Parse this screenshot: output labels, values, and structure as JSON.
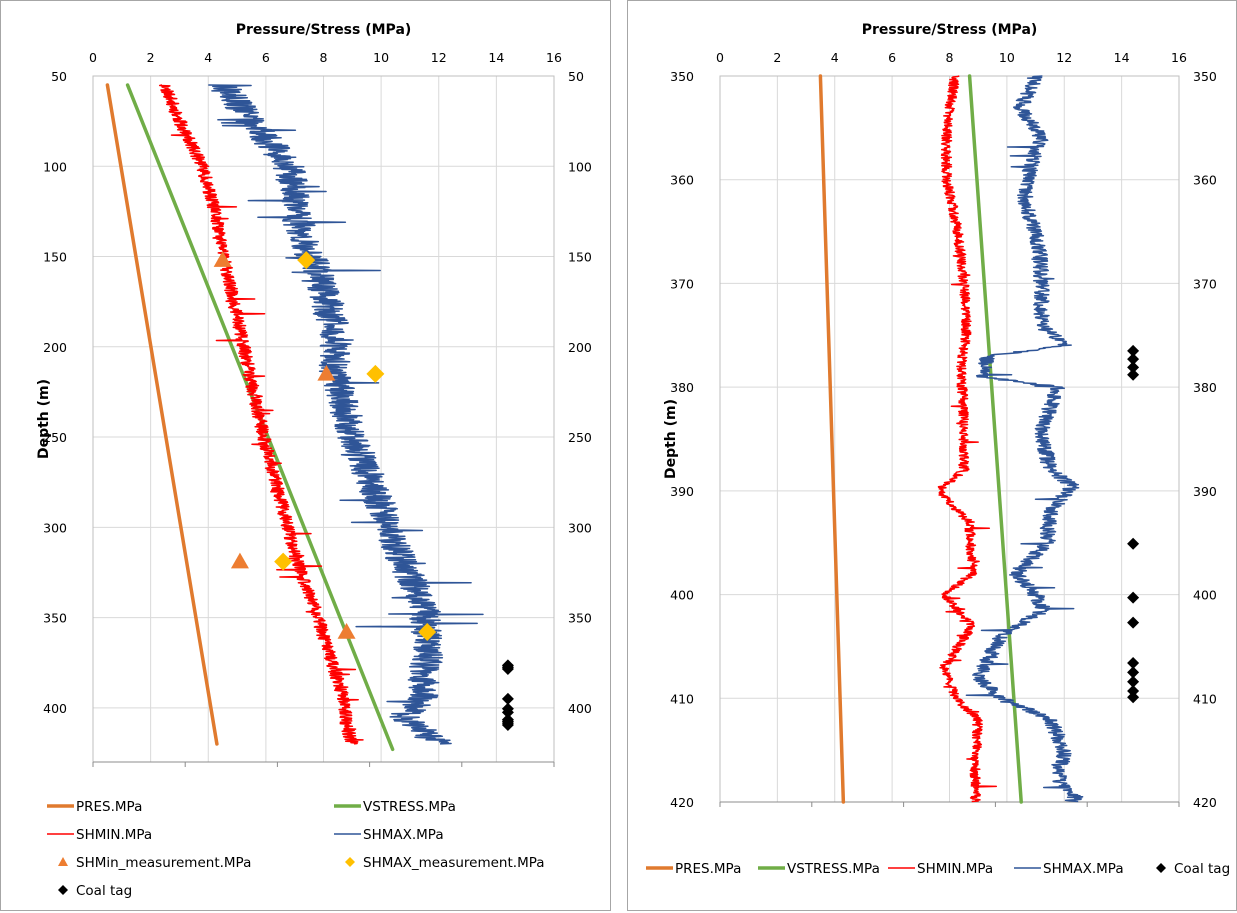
{
  "chart_data": [
    {
      "type": "line",
      "title": "",
      "xlabel": "Pressure/Stress (MPa)",
      "ylabel": "Depth (m)",
      "x_axis_position": "top",
      "y_inverted": true,
      "xlim": [
        0,
        16
      ],
      "x_ticks": [
        0,
        2,
        4,
        6,
        8,
        10,
        12,
        14,
        16
      ],
      "ylim": [
        50,
        430
      ],
      "y_ticks": [
        50,
        100,
        150,
        200,
        250,
        300,
        350,
        400
      ],
      "secondary_y_ticks": [
        50,
        100,
        150,
        200,
        250,
        300,
        350,
        400
      ],
      "grid": true,
      "legend_position": "bottom",
      "series": [
        {
          "name": "PRES.MPa",
          "kind": "line",
          "color": "#E07A2E",
          "points": [
            [
              0.5,
              55
            ],
            [
              4.3,
              420
            ]
          ]
        },
        {
          "name": "VSTRESS.MPa",
          "kind": "line",
          "color": "#70AD47",
          "points": [
            [
              1.2,
              55
            ],
            [
              10.4,
              423
            ]
          ]
        },
        {
          "name": "SHMIN.MPa",
          "kind": "noisy-line",
          "color": "#FF0000",
          "trend": [
            [
              2.5,
              55
            ],
            [
              3.0,
              75
            ],
            [
              3.8,
              100
            ],
            [
              4.3,
              130
            ],
            [
              4.6,
              155
            ],
            [
              5.1,
              190
            ],
            [
              5.5,
              220
            ],
            [
              6.0,
              255
            ],
            [
              6.6,
              290
            ],
            [
              7.1,
              320
            ],
            [
              7.8,
              350
            ],
            [
              8.3,
              375
            ],
            [
              8.7,
              395
            ],
            [
              8.8,
              410
            ],
            [
              9.0,
              420
            ]
          ],
          "spread": 0.45
        },
        {
          "name": "SHMAX.MPa",
          "kind": "noisy-line",
          "color": "#2F5597",
          "trend": [
            [
              4.5,
              55
            ],
            [
              5.5,
              75
            ],
            [
              6.8,
              100
            ],
            [
              7.1,
              130
            ],
            [
              7.8,
              160
            ],
            [
              8.4,
              190
            ],
            [
              8.4,
              215
            ],
            [
              9.0,
              250
            ],
            [
              9.8,
              280
            ],
            [
              10.5,
              310
            ],
            [
              11.5,
              345
            ],
            [
              11.6,
              370
            ],
            [
              11.4,
              395
            ],
            [
              10.8,
              405
            ],
            [
              12.0,
              420
            ]
          ],
          "spread": 1.1
        },
        {
          "name": "SHMin_measurement.MPa",
          "kind": "scatter",
          "marker": "triangle",
          "color": "#ED7D31",
          "points": [
            [
              4.5,
              152
            ],
            [
              8.1,
              215
            ],
            [
              5.1,
              319
            ],
            [
              8.8,
              358
            ]
          ]
        },
        {
          "name": "SHMAX_measurement.MPa",
          "kind": "scatter",
          "marker": "diamond",
          "color": "#FFC000",
          "points": [
            [
              7.4,
              152
            ],
            [
              9.8,
              215
            ],
            [
              6.6,
              319
            ],
            [
              11.6,
              358
            ]
          ]
        },
        {
          "name": "Coal tag",
          "kind": "scatter",
          "marker": "diamond",
          "color": "#000000",
          "points": [
            [
              14.4,
              376.5
            ],
            [
              14.4,
              377.5
            ],
            [
              14.4,
              378.5
            ],
            [
              14.4,
              395
            ],
            [
              14.4,
              400.5
            ],
            [
              14.4,
              402.5
            ],
            [
              14.4,
              406.5
            ],
            [
              14.4,
              407.5
            ],
            [
              14.4,
              408.5
            ],
            [
              14.4,
              409.5
            ]
          ]
        }
      ],
      "legend": [
        "PRES.MPa",
        "VSTRESS.MPa",
        "SHMIN.MPa",
        "SHMAX.MPa",
        "SHMin_measurement.MPa",
        "SHMAX_measurement.MPa",
        "Coal tag"
      ]
    },
    {
      "type": "line",
      "title": "",
      "xlabel": "Pressure/Stress (MPa)",
      "ylabel": "Depth (m)",
      "x_axis_position": "top",
      "y_inverted": true,
      "xlim": [
        0,
        16
      ],
      "x_ticks": [
        0,
        2,
        4,
        6,
        8,
        10,
        12,
        14,
        16
      ],
      "ylim": [
        350,
        420
      ],
      "y_ticks": [
        350,
        360,
        370,
        380,
        390,
        400,
        410,
        420
      ],
      "secondary_y_ticks": [
        350,
        360,
        370,
        380,
        390,
        400,
        410,
        420
      ],
      "grid": true,
      "legend_position": "bottom",
      "series": [
        {
          "name": "PRES.MPa",
          "kind": "line",
          "color": "#E07A2E",
          "points": [
            [
              3.5,
              350
            ],
            [
              4.3,
              420
            ]
          ]
        },
        {
          "name": "VSTRESS.MPa",
          "kind": "line",
          "color": "#70AD47",
          "points": [
            [
              8.7,
              350
            ],
            [
              10.5,
              420
            ]
          ]
        },
        {
          "name": "SHMIN.MPa",
          "kind": "noisy-line",
          "color": "#FF0000",
          "trend": [
            [
              8.2,
              350
            ],
            [
              7.9,
              355
            ],
            [
              7.9,
              360
            ],
            [
              8.3,
              365
            ],
            [
              8.5,
              370
            ],
            [
              8.6,
              375
            ],
            [
              8.4,
              378
            ],
            [
              8.5,
              383
            ],
            [
              8.5,
              388
            ],
            [
              7.6,
              390
            ],
            [
              8.7,
              393
            ],
            [
              8.8,
              398
            ],
            [
              7.8,
              400
            ],
            [
              8.8,
              403
            ],
            [
              7.8,
              407
            ],
            [
              8.2,
              410
            ],
            [
              9.0,
              412
            ],
            [
              8.9,
              416
            ],
            [
              8.9,
              420
            ]
          ],
          "spread": 0.35
        },
        {
          "name": "SHMAX.MPa",
          "kind": "noisy-line",
          "color": "#2F5597",
          "trend": [
            [
              11.0,
              350
            ],
            [
              10.5,
              353
            ],
            [
              11.2,
              356
            ],
            [
              10.8,
              359
            ],
            [
              10.6,
              362
            ],
            [
              11.1,
              366
            ],
            [
              11.2,
              370
            ],
            [
              11.2,
              374
            ],
            [
              12.0,
              376
            ],
            [
              9.3,
              377
            ],
            [
              9.2,
              379
            ],
            [
              11.8,
              380
            ],
            [
              11.2,
              384
            ],
            [
              11.5,
              388
            ],
            [
              12.3,
              389.5
            ],
            [
              11.5,
              392
            ],
            [
              11.4,
              395
            ],
            [
              10.3,
              398
            ],
            [
              11.0,
              400
            ],
            [
              11.3,
              401.5
            ],
            [
              9.8,
              404
            ],
            [
              9.0,
              408
            ],
            [
              9.8,
              410
            ],
            [
              11.5,
              412
            ],
            [
              12.0,
              415
            ],
            [
              11.8,
              418
            ],
            [
              12.5,
              420
            ]
          ],
          "spread": 0.55
        },
        {
          "name": "Coal tag",
          "kind": "scatter",
          "marker": "diamond",
          "color": "#000000",
          "points": [
            [
              14.4,
              376.5
            ],
            [
              14.4,
              377.3
            ],
            [
              14.4,
              378.1
            ],
            [
              14.4,
              378.8
            ],
            [
              14.4,
              395.1
            ],
            [
              14.4,
              400.3
            ],
            [
              14.4,
              402.7
            ],
            [
              14.4,
              406.6
            ],
            [
              14.4,
              407.5
            ],
            [
              14.4,
              408.4
            ],
            [
              14.4,
              409.3
            ],
            [
              14.4,
              409.9
            ]
          ]
        }
      ],
      "legend": [
        "PRES.MPa",
        "VSTRESS.MPa",
        "SHMIN.MPa",
        "SHMAX.MPa",
        "Coal tag"
      ]
    }
  ]
}
